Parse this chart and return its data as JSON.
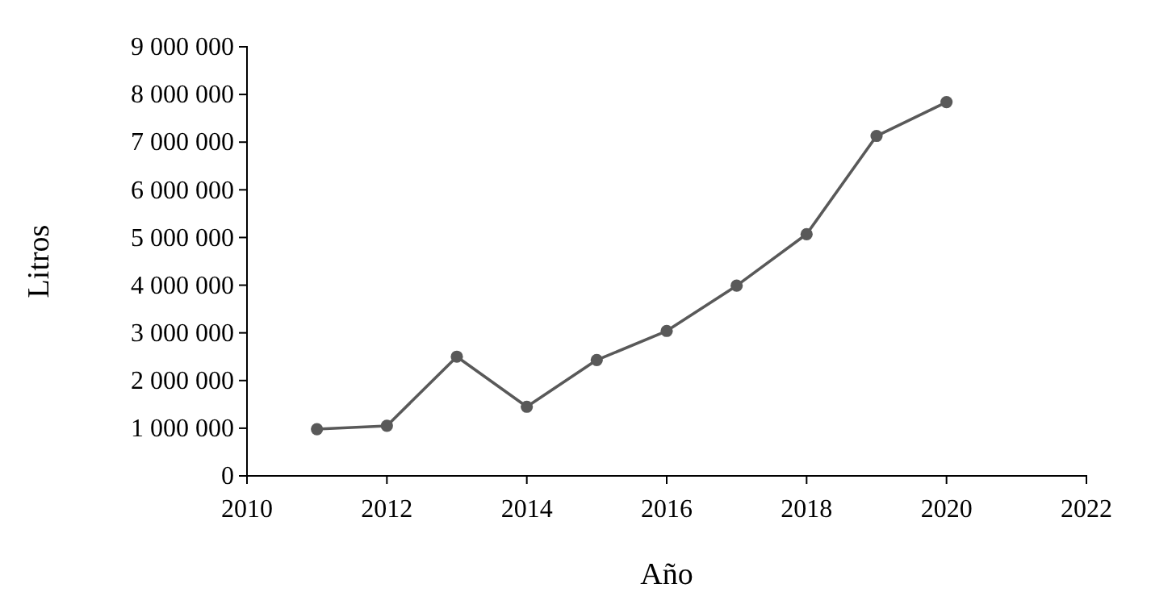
{
  "chart_data": {
    "type": "line",
    "xlabel": "Año",
    "ylabel": "Litros",
    "x": [
      2011,
      2012,
      2013,
      2014,
      2015,
      2016,
      2017,
      2018,
      2019,
      2020
    ],
    "series": [
      {
        "color": "#595959",
        "values": [
          980000,
          1050000,
          2500000,
          1450000,
          2430000,
          3040000,
          3990000,
          5070000,
          7130000,
          7840000
        ]
      }
    ],
    "xlim": [
      2010,
      2022
    ],
    "xticks": [
      2010,
      2012,
      2014,
      2016,
      2018,
      2020,
      2022
    ],
    "ylim": [
      0,
      9000000
    ],
    "yticks": [
      0,
      {
        "value": 1000000,
        "label": "1 000 000"
      },
      {
        "value": 2000000,
        "label": "2 000 000"
      },
      {
        "value": 3000000,
        "label": "3 000 000"
      },
      {
        "value": 4000000,
        "label": "4 000 000"
      },
      {
        "value": 5000000,
        "label": "5 000 000"
      },
      {
        "value": 6000000,
        "label": "6 000 000"
      },
      {
        "value": 7000000,
        "label": "7 000 000"
      },
      {
        "value": 8000000,
        "label": "8 000 000"
      },
      {
        "value": 9000000,
        "label": "9 000 000"
      }
    ],
    "grid": false,
    "marker": "circle",
    "line_style": "solid"
  }
}
